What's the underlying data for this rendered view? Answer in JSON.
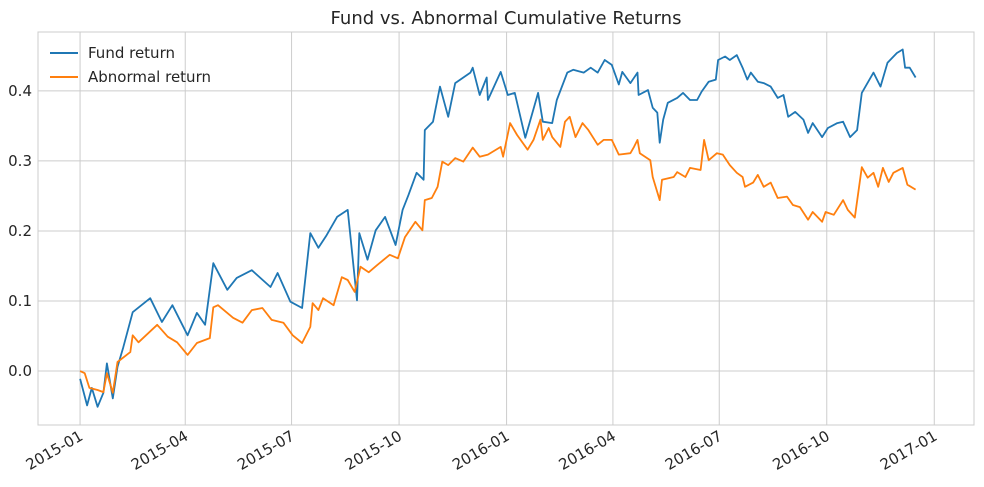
{
  "chart_data": {
    "type": "line",
    "title": "Fund vs. Abnormal Cumulative Returns",
    "xlabel": "",
    "ylabel": "",
    "x_origin": "2015-01-01",
    "x_unit": "days since 2015-01-01",
    "xlim": [
      -36,
      765
    ],
    "ylim": [
      -0.077,
      0.484
    ],
    "grid": true,
    "legend_position": "top-left",
    "x_ticks": [
      {
        "day": 0,
        "label": "2015-01"
      },
      {
        "day": 90,
        "label": "2015-04"
      },
      {
        "day": 181,
        "label": "2015-07"
      },
      {
        "day": 273,
        "label": "2015-10"
      },
      {
        "day": 365,
        "label": "2016-01"
      },
      {
        "day": 456,
        "label": "2016-04"
      },
      {
        "day": 547,
        "label": "2016-07"
      },
      {
        "day": 639,
        "label": "2016-10"
      },
      {
        "day": 731,
        "label": "2017-01"
      }
    ],
    "y_ticks": [
      {
        "value": 0.0,
        "label": "0.0"
      },
      {
        "value": 0.1,
        "label": "0.1"
      },
      {
        "value": 0.2,
        "label": "0.2"
      },
      {
        "value": 0.3,
        "label": "0.3"
      },
      {
        "value": 0.4,
        "label": "0.4"
      }
    ],
    "series": [
      {
        "name": "Fund return",
        "color": "#1f77b4",
        "points": [
          [
            0,
            -0.011
          ],
          [
            6,
            -0.049
          ],
          [
            10,
            -0.024
          ],
          [
            15,
            -0.051
          ],
          [
            20,
            -0.031
          ],
          [
            23,
            0.011
          ],
          [
            28,
            -0.039
          ],
          [
            32,
            0.006
          ],
          [
            37,
            0.034
          ],
          [
            45,
            0.084
          ],
          [
            60,
            0.104
          ],
          [
            70,
            0.07
          ],
          [
            79,
            0.094
          ],
          [
            92,
            0.051
          ],
          [
            100,
            0.083
          ],
          [
            107,
            0.066
          ],
          [
            114,
            0.154
          ],
          [
            126,
            0.116
          ],
          [
            134,
            0.133
          ],
          [
            147,
            0.144
          ],
          [
            163,
            0.12
          ],
          [
            169,
            0.14
          ],
          [
            180,
            0.099
          ],
          [
            190,
            0.09
          ],
          [
            197,
            0.197
          ],
          [
            204,
            0.176
          ],
          [
            211,
            0.194
          ],
          [
            220,
            0.22
          ],
          [
            229,
            0.23
          ],
          [
            237,
            0.101
          ],
          [
            239,
            0.197
          ],
          [
            246,
            0.159
          ],
          [
            253,
            0.201
          ],
          [
            261,
            0.22
          ],
          [
            270,
            0.18
          ],
          [
            276,
            0.23
          ],
          [
            281,
            0.251
          ],
          [
            288,
            0.283
          ],
          [
            294,
            0.273
          ],
          [
            295,
            0.344
          ],
          [
            302,
            0.356
          ],
          [
            308,
            0.406
          ],
          [
            315,
            0.363
          ],
          [
            321,
            0.411
          ],
          [
            334,
            0.426
          ],
          [
            336,
            0.433
          ],
          [
            342,
            0.394
          ],
          [
            348,
            0.419
          ],
          [
            349,
            0.387
          ],
          [
            360,
            0.427
          ],
          [
            366,
            0.394
          ],
          [
            372,
            0.397
          ],
          [
            381,
            0.333
          ],
          [
            392,
            0.397
          ],
          [
            396,
            0.356
          ],
          [
            404,
            0.354
          ],
          [
            408,
            0.387
          ],
          [
            417,
            0.426
          ],
          [
            422,
            0.43
          ],
          [
            431,
            0.426
          ],
          [
            437,
            0.433
          ],
          [
            443,
            0.426
          ],
          [
            449,
            0.444
          ],
          [
            455,
            0.437
          ],
          [
            461,
            0.409
          ],
          [
            464,
            0.427
          ],
          [
            471,
            0.411
          ],
          [
            477,
            0.426
          ],
          [
            478,
            0.394
          ],
          [
            486,
            0.401
          ],
          [
            490,
            0.376
          ],
          [
            494,
            0.369
          ],
          [
            496,
            0.326
          ],
          [
            499,
            0.359
          ],
          [
            503,
            0.383
          ],
          [
            511,
            0.39
          ],
          [
            516,
            0.397
          ],
          [
            522,
            0.387
          ],
          [
            528,
            0.387
          ],
          [
            532,
            0.399
          ],
          [
            538,
            0.413
          ],
          [
            544,
            0.416
          ],
          [
            546,
            0.444
          ],
          [
            552,
            0.449
          ],
          [
            556,
            0.444
          ],
          [
            562,
            0.451
          ],
          [
            567,
            0.433
          ],
          [
            571,
            0.416
          ],
          [
            574,
            0.426
          ],
          [
            580,
            0.413
          ],
          [
            585,
            0.411
          ],
          [
            591,
            0.406
          ],
          [
            597,
            0.39
          ],
          [
            602,
            0.394
          ],
          [
            606,
            0.363
          ],
          [
            612,
            0.37
          ],
          [
            619,
            0.359
          ],
          [
            623,
            0.34
          ],
          [
            627,
            0.354
          ],
          [
            635,
            0.334
          ],
          [
            640,
            0.347
          ],
          [
            648,
            0.354
          ],
          [
            653,
            0.356
          ],
          [
            659,
            0.334
          ],
          [
            665,
            0.344
          ],
          [
            669,
            0.397
          ],
          [
            679,
            0.426
          ],
          [
            685,
            0.406
          ],
          [
            691,
            0.44
          ],
          [
            699,
            0.454
          ],
          [
            704,
            0.459
          ],
          [
            706,
            0.433
          ],
          [
            710,
            0.433
          ],
          [
            715,
            0.419
          ]
        ]
      },
      {
        "name": "Abnormal return",
        "color": "#ff7f0e",
        "points": [
          [
            0,
            0.0
          ],
          [
            4,
            -0.003
          ],
          [
            8,
            -0.024
          ],
          [
            15,
            -0.027
          ],
          [
            20,
            -0.03
          ],
          [
            23,
            -0.003
          ],
          [
            28,
            -0.031
          ],
          [
            32,
            0.013
          ],
          [
            43,
            0.027
          ],
          [
            45,
            0.051
          ],
          [
            50,
            0.041
          ],
          [
            66,
            0.066
          ],
          [
            75,
            0.049
          ],
          [
            83,
            0.041
          ],
          [
            92,
            0.023
          ],
          [
            100,
            0.04
          ],
          [
            111,
            0.047
          ],
          [
            114,
            0.091
          ],
          [
            118,
            0.094
          ],
          [
            131,
            0.076
          ],
          [
            139,
            0.069
          ],
          [
            147,
            0.087
          ],
          [
            156,
            0.09
          ],
          [
            164,
            0.073
          ],
          [
            174,
            0.069
          ],
          [
            182,
            0.051
          ],
          [
            190,
            0.04
          ],
          [
            197,
            0.063
          ],
          [
            199,
            0.097
          ],
          [
            204,
            0.087
          ],
          [
            208,
            0.104
          ],
          [
            217,
            0.094
          ],
          [
            224,
            0.134
          ],
          [
            229,
            0.13
          ],
          [
            235,
            0.113
          ],
          [
            240,
            0.149
          ],
          [
            247,
            0.141
          ],
          [
            254,
            0.151
          ],
          [
            265,
            0.166
          ],
          [
            272,
            0.161
          ],
          [
            278,
            0.191
          ],
          [
            287,
            0.213
          ],
          [
            293,
            0.201
          ],
          [
            295,
            0.244
          ],
          [
            301,
            0.247
          ],
          [
            306,
            0.263
          ],
          [
            310,
            0.299
          ],
          [
            315,
            0.294
          ],
          [
            321,
            0.304
          ],
          [
            328,
            0.299
          ],
          [
            336,
            0.319
          ],
          [
            342,
            0.306
          ],
          [
            349,
            0.309
          ],
          [
            360,
            0.32
          ],
          [
            362,
            0.306
          ],
          [
            368,
            0.354
          ],
          [
            374,
            0.337
          ],
          [
            383,
            0.316
          ],
          [
            388,
            0.33
          ],
          [
            394,
            0.359
          ],
          [
            396,
            0.33
          ],
          [
            401,
            0.347
          ],
          [
            404,
            0.334
          ],
          [
            411,
            0.32
          ],
          [
            415,
            0.356
          ],
          [
            419,
            0.363
          ],
          [
            424,
            0.334
          ],
          [
            430,
            0.354
          ],
          [
            435,
            0.344
          ],
          [
            443,
            0.323
          ],
          [
            448,
            0.33
          ],
          [
            455,
            0.33
          ],
          [
            461,
            0.309
          ],
          [
            471,
            0.311
          ],
          [
            474,
            0.32
          ],
          [
            477,
            0.33
          ],
          [
            479,
            0.311
          ],
          [
            488,
            0.301
          ],
          [
            490,
            0.277
          ],
          [
            496,
            0.244
          ],
          [
            498,
            0.273
          ],
          [
            508,
            0.277
          ],
          [
            511,
            0.284
          ],
          [
            518,
            0.277
          ],
          [
            522,
            0.29
          ],
          [
            531,
            0.287
          ],
          [
            534,
            0.33
          ],
          [
            538,
            0.301
          ],
          [
            545,
            0.311
          ],
          [
            550,
            0.309
          ],
          [
            556,
            0.294
          ],
          [
            562,
            0.283
          ],
          [
            567,
            0.277
          ],
          [
            569,
            0.263
          ],
          [
            576,
            0.269
          ],
          [
            580,
            0.28
          ],
          [
            585,
            0.263
          ],
          [
            591,
            0.269
          ],
          [
            597,
            0.247
          ],
          [
            605,
            0.249
          ],
          [
            610,
            0.237
          ],
          [
            616,
            0.234
          ],
          [
            623,
            0.216
          ],
          [
            627,
            0.227
          ],
          [
            635,
            0.213
          ],
          [
            638,
            0.227
          ],
          [
            645,
            0.223
          ],
          [
            653,
            0.244
          ],
          [
            657,
            0.23
          ],
          [
            663,
            0.219
          ],
          [
            669,
            0.291
          ],
          [
            674,
            0.276
          ],
          [
            679,
            0.283
          ],
          [
            683,
            0.263
          ],
          [
            687,
            0.29
          ],
          [
            692,
            0.27
          ],
          [
            696,
            0.283
          ],
          [
            704,
            0.29
          ],
          [
            708,
            0.266
          ],
          [
            715,
            0.259
          ]
        ]
      }
    ]
  }
}
